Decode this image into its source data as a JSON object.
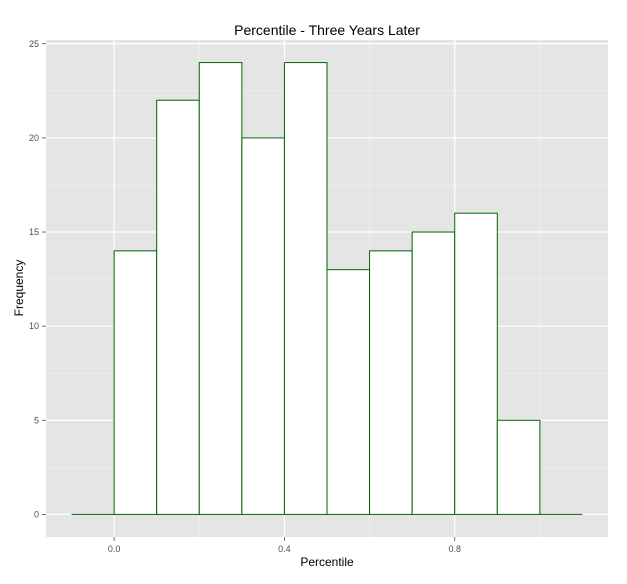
{
  "chart_data": {
    "type": "bar",
    "title": "Percentile - Three Years Later",
    "xlabel": "Percentile",
    "ylabel": "Frequency",
    "x_ticks": [
      "0.0",
      "0.4",
      "0.8"
    ],
    "x_tick_values": [
      0.0,
      0.4,
      0.8
    ],
    "y_ticks": [
      "0",
      "5",
      "10",
      "15",
      "20",
      "25"
    ],
    "y_tick_values": [
      0,
      5,
      10,
      15,
      20,
      25
    ],
    "xlim": [
      -0.16,
      1.16
    ],
    "ylim": [
      -1.2,
      25.2
    ],
    "bin_width": 0.1,
    "bins": [
      {
        "start": -0.1,
        "end": 0.0,
        "value": 0
      },
      {
        "start": 0.0,
        "end": 0.1,
        "value": 14
      },
      {
        "start": 0.1,
        "end": 0.2,
        "value": 22
      },
      {
        "start": 0.2,
        "end": 0.3,
        "value": 24
      },
      {
        "start": 0.3,
        "end": 0.4,
        "value": 20
      },
      {
        "start": 0.4,
        "end": 0.5,
        "value": 24
      },
      {
        "start": 0.5,
        "end": 0.6,
        "value": 13
      },
      {
        "start": 0.6,
        "end": 0.7,
        "value": 14
      },
      {
        "start": 0.7,
        "end": 0.8,
        "value": 15
      },
      {
        "start": 0.8,
        "end": 0.9,
        "value": 16
      },
      {
        "start": 0.9,
        "end": 1.0,
        "value": 5
      },
      {
        "start": 1.0,
        "end": 1.1,
        "value": 0
      }
    ],
    "colors": {
      "panel_background": "#e5e5e5",
      "grid_major": "#ffffff",
      "grid_minor": "#f2f2f2",
      "bar_fill": "#ffffff",
      "bar_outline": "#006400"
    },
    "grid": true,
    "legend": "none"
  }
}
